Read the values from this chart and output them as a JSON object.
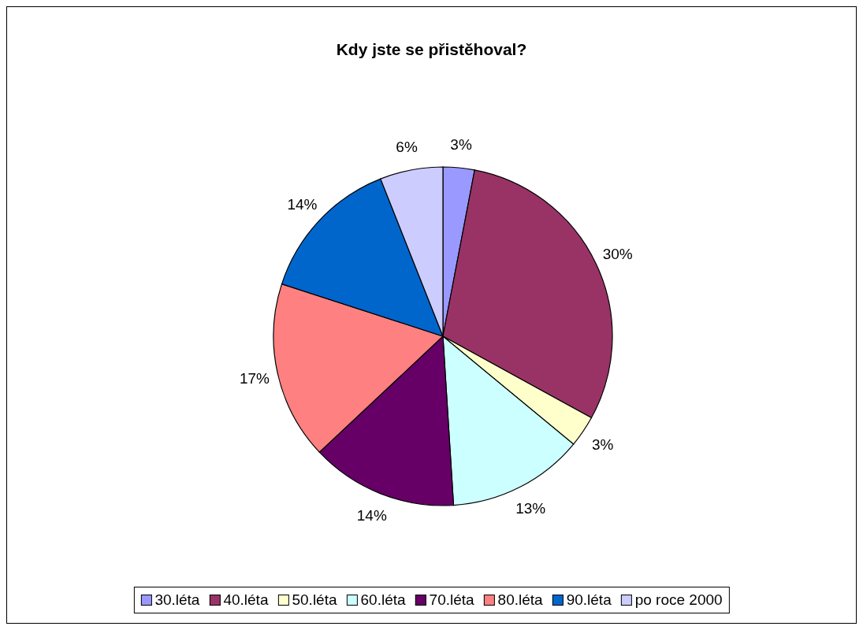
{
  "chart_data": {
    "type": "pie",
    "title": "Kdy jste se přistěhoval?",
    "categories": [
      "30.léta",
      "40.léta",
      "50.léta",
      "60.léta",
      "70.léta",
      "80.léta",
      "90.léta",
      "po roce 2000"
    ],
    "values": [
      3,
      30,
      3,
      13,
      14,
      17,
      14,
      6
    ],
    "value_labels": [
      "3%",
      "30%",
      "3%",
      "13%",
      "14%",
      "17%",
      "14%",
      "6%"
    ],
    "colors": [
      "#9999ff",
      "#993366",
      "#ffffcc",
      "#ccffff",
      "#660066",
      "#ff8080",
      "#0066cc",
      "#ccccff"
    ],
    "legend": "bottom"
  }
}
